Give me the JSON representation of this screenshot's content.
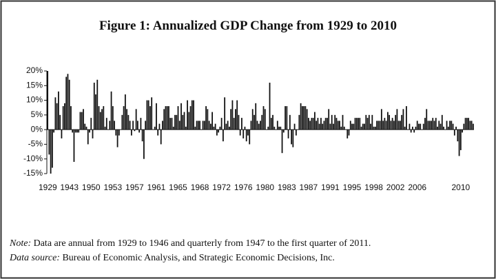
{
  "chart_data": {
    "type": "bar",
    "title": "Figure 1: Annualized GDP Change from 1929 to 2010",
    "note_label": "Note:",
    "note_text": "Data are annual from 1929 to 1946 and quarterly from 1947 to the first quarter of 2011.",
    "source_label": "Data source:",
    "source_text": "Bureau of Economic Analysis, and Strategic Economic Decisions, Inc.",
    "color": "#111111",
    "ylim": [
      -15,
      20
    ],
    "yticks": [
      {
        "value": -15,
        "label": "-15%"
      },
      {
        "value": -10,
        "label": "-10%"
      },
      {
        "value": -5,
        "label": "-5%"
      },
      {
        "value": 0,
        "label": "0%"
      },
      {
        "value": 5,
        "label": "5%"
      },
      {
        "value": 10,
        "label": "10%"
      },
      {
        "value": 15,
        "label": "15%"
      },
      {
        "value": 20,
        "label": "20%"
      }
    ],
    "categories": [
      "1929",
      null,
      null,
      null,
      null,
      null,
      null,
      null,
      null,
      null,
      null,
      null,
      null,
      null,
      "1943",
      null,
      null,
      null,
      null,
      null,
      null,
      null,
      null,
      null,
      null,
      null,
      null,
      null,
      "1950",
      null,
      null,
      null,
      null,
      null,
      null,
      null,
      null,
      null,
      null,
      null,
      null,
      null,
      "1953",
      null,
      null,
      null,
      null,
      null,
      null,
      null,
      null,
      null,
      null,
      null,
      null,
      null,
      "1957",
      null,
      null,
      null,
      null,
      null,
      null,
      null,
      null,
      null,
      null,
      null,
      null,
      null,
      "1961",
      null,
      null,
      null,
      null,
      null,
      null,
      null,
      null,
      null,
      null,
      null,
      null,
      null,
      "1965",
      null,
      null,
      null,
      null,
      null,
      null,
      null,
      null,
      null,
      null,
      null,
      null,
      null,
      "1968",
      null,
      null,
      null,
      null,
      null,
      null,
      null,
      null,
      null,
      null,
      null,
      null,
      null,
      "1972",
      null,
      null,
      null,
      null,
      null,
      null,
      null,
      null,
      null,
      null,
      null,
      null,
      null,
      "1976",
      null,
      null,
      null,
      null,
      null,
      null,
      null,
      null,
      null,
      null,
      null,
      null,
      null,
      "1980",
      null,
      null,
      null,
      null,
      null,
      null,
      null,
      null,
      null,
      null,
      null,
      null,
      null,
      "1983",
      null,
      null,
      null,
      null,
      null,
      null,
      null,
      null,
      null,
      null,
      null,
      null,
      null,
      "1987",
      null,
      null,
      null,
      null,
      null,
      null,
      null,
      null,
      null,
      null,
      null,
      null,
      null,
      "1991",
      null,
      null,
      null,
      null,
      null,
      null,
      null,
      null,
      null,
      null,
      null,
      null,
      null,
      "1995",
      null,
      null,
      null,
      null,
      null,
      null,
      null,
      null,
      null,
      null,
      null,
      null,
      null,
      "1998",
      null,
      null,
      null,
      null,
      null,
      null,
      null,
      null,
      null,
      null,
      null,
      null,
      null,
      "2002",
      null,
      null,
      null,
      null,
      null,
      null,
      null,
      null,
      null,
      null,
      null,
      null,
      null,
      "2006",
      null,
      null,
      null,
      null,
      null,
      null,
      null,
      null,
      null,
      null,
      null,
      null,
      null,
      null,
      null,
      null,
      null,
      null,
      null,
      null,
      null,
      null,
      null,
      null,
      null,
      null,
      null,
      "2010",
      null,
      null,
      null,
      null,
      null,
      null,
      null,
      null
    ],
    "values": [
      20,
      -8.5,
      -15,
      -13,
      -1,
      11,
      9,
      13,
      5,
      -3,
      8,
      9,
      18,
      19,
      17,
      8,
      -1,
      -11,
      -1,
      -1,
      -1,
      6,
      6,
      7,
      2,
      1,
      -5,
      -1,
      4,
      -3,
      16,
      12,
      17,
      8,
      6,
      7,
      8,
      1,
      4,
      0,
      3,
      13,
      8,
      3,
      -2,
      -6,
      -2,
      0,
      5,
      8,
      12,
      7,
      5,
      3,
      -2,
      3,
      -0.5,
      7,
      3,
      -1,
      4,
      -4,
      -10,
      3,
      10,
      10,
      8,
      11,
      0,
      1,
      9,
      -2,
      2,
      -5,
      3,
      7,
      8,
      8,
      8,
      4,
      4,
      1,
      5,
      5,
      8,
      3,
      9,
      5,
      6,
      1,
      10,
      6,
      8,
      10,
      10,
      1,
      3,
      3,
      3,
      0,
      3,
      3,
      8,
      7,
      3,
      2,
      6,
      1,
      2,
      -2,
      -1,
      1,
      4,
      -4,
      11,
      2,
      3,
      1,
      7,
      10,
      4,
      7,
      10,
      5,
      -2,
      4,
      -3,
      1,
      -4,
      -2,
      -5,
      3,
      7,
      5,
      9,
      3,
      2,
      3,
      5,
      8,
      7,
      0,
      1,
      16,
      4,
      5,
      1,
      0,
      3,
      1,
      1,
      -8,
      -1,
      8,
      8,
      -3,
      5,
      -5,
      -6,
      2,
      -2,
      0,
      5,
      9,
      8,
      8,
      8,
      7,
      4,
      3,
      4,
      4,
      6,
      3,
      4,
      2,
      4,
      2,
      3,
      4,
      4,
      7,
      2,
      5,
      2,
      5,
      4,
      3,
      3,
      1,
      5,
      1,
      0,
      -3,
      -2,
      3,
      2,
      2,
      4,
      4,
      4,
      4,
      1,
      2,
      2,
      5,
      4,
      5,
      2,
      5,
      1,
      1,
      3,
      3,
      3,
      7,
      3,
      4,
      3,
      6,
      5,
      3,
      4,
      3,
      5,
      7,
      3,
      3,
      5,
      7,
      1,
      8,
      0,
      2,
      -1,
      1,
      -1,
      1,
      3,
      2,
      2,
      0,
      2,
      4,
      7,
      3,
      3,
      3,
      4,
      3,
      4,
      1,
      3,
      2,
      5,
      1,
      0,
      3,
      1,
      3,
      3,
      2,
      -2,
      1,
      -4,
      -9,
      -7,
      -1,
      2,
      4,
      4,
      4,
      3,
      3,
      2
    ]
  }
}
